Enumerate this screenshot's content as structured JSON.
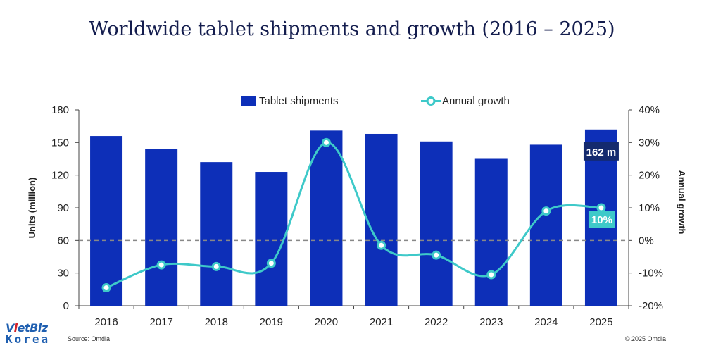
{
  "title": "Worldwide tablet shipments and growth (2016 – 2025)",
  "legend": {
    "bars": "Tablet shipments",
    "line": "Annual growth"
  },
  "source": "Source: Omdia",
  "copyright": "© 2025 Omdia",
  "logo": {
    "line1_a": "V",
    "line1_b": "i",
    "line1_c": "etBiz",
    "line2": "Korea"
  },
  "colors": {
    "bar": "#0d2fb8",
    "line": "#3ec9c9",
    "title": "#141d4e",
    "ref": "#888888"
  },
  "chart_data": {
    "type": "bar+line",
    "categories": [
      "2016",
      "2017",
      "2018",
      "2019",
      "2020",
      "2021",
      "2022",
      "2023",
      "2024",
      "2025"
    ],
    "series": [
      {
        "name": "Tablet shipments",
        "axis": "left",
        "type": "bar",
        "values": [
          156,
          144,
          132,
          123,
          161,
          158,
          151,
          135,
          148,
          162
        ]
      },
      {
        "name": "Annual growth",
        "axis": "right",
        "type": "line",
        "values": [
          -14.5,
          -7.5,
          -8,
          -7,
          30,
          -1.5,
          -4.5,
          -10.5,
          9,
          10
        ]
      }
    ],
    "ylabel": "Units (million)",
    "y2label": "Annual growth",
    "ylim": [
      0,
      180
    ],
    "y2lim": [
      -20,
      40
    ],
    "yticks": [
      0,
      30,
      60,
      90,
      120,
      150,
      180
    ],
    "y2ticks": [
      "-20%",
      "-10%",
      "0%",
      "10%",
      "20%",
      "30%",
      "40%"
    ],
    "y2tick_values": [
      -20,
      -10,
      0,
      10,
      20,
      30,
      40
    ],
    "reference_line": {
      "axis": "right",
      "value": 0,
      "style": "dashed"
    },
    "annotations": [
      {
        "text": "162 m",
        "category": "2025",
        "series": "Tablet shipments"
      },
      {
        "text": "10%",
        "category": "2025",
        "series": "Annual growth"
      }
    ]
  }
}
